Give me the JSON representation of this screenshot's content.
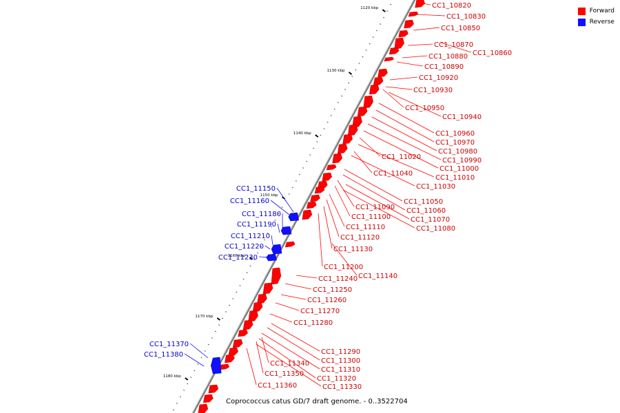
{
  "legend": {
    "forward_label": "Forward",
    "reverse_label": "Reverse",
    "forward_color": "#ff0000",
    "reverse_color": "#1010ff"
  },
  "caption": "Coprococcus catus GD/7 draft genome. - 0..3522704",
  "ticks": [
    {
      "label": "1120 kbp",
      "position_kbp": 1120
    },
    {
      "label": "1130 kbp",
      "position_kbp": 1130
    },
    {
      "label": "1140 kbp",
      "position_kbp": 1140
    },
    {
      "label": "1150 kbp",
      "position_kbp": 1150
    },
    {
      "label": "1160 kbp",
      "position_kbp": 1160
    },
    {
      "label": "1170 kbp",
      "position_kbp": 1170
    },
    {
      "label": "1180 kbp",
      "position_kbp": 1180
    }
  ],
  "forward_genes": [
    "CC1_10820",
    "CC1_10830",
    "CC1_10850",
    "CC1_10870",
    "CC1_10860",
    "CC1_10880",
    "CC1_10890",
    "CC1_10920",
    "CC1_10930",
    "CC1_10950",
    "CC1_10940",
    "CC1_10960",
    "CC1_10970",
    "CC1_10980",
    "CC1_10990",
    "CC1_11000",
    "CC1_11020",
    "CC1_11010",
    "CC1_11040",
    "CC1_11030",
    "CC1_11050",
    "CC1_11060",
    "CC1_11090",
    "CC1_11100",
    "CC1_11070",
    "CC1_11080",
    "CC1_11110",
    "CC1_11120",
    "CC1_11130",
    "CC1_11200",
    "CC1_11140",
    "CC1_11240",
    "CC1_11250",
    "CC1_11260",
    "CC1_11270",
    "CC1_11280",
    "CC1_11290",
    "CC1_11300",
    "CC1_11340",
    "CC1_11310",
    "CC1_11350",
    "CC1_11320",
    "CC1_11330",
    "CC1_11360"
  ],
  "reverse_genes": [
    "CC1_11150",
    "CC1_11160",
    "CC1_11180",
    "CC1_11190",
    "CC1_11210",
    "CC1_11220",
    "CC1_11230",
    "CC1_11370",
    "CC1_11380"
  ]
}
